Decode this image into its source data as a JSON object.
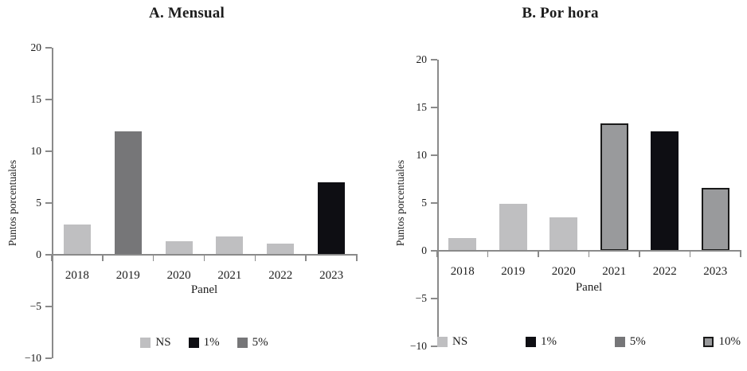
{
  "figure": {
    "background": "#ffffff",
    "text_color": "#1c1c1c",
    "axis_color": "#8a8a8a"
  },
  "styles": {
    "NS": {
      "fill": "#bfbfc1",
      "stroke": null
    },
    "1%": {
      "fill": "#0e0e13",
      "stroke": null
    },
    "5%": {
      "fill": "#767678",
      "stroke": null
    },
    "10%": {
      "fill": "#999a9c",
      "stroke": "#1a1a1a"
    }
  },
  "chart_data": [
    {
      "type": "bar",
      "title": "A. Mensual",
      "xlabel": "Panel",
      "ylabel": "Puntos porcentuales",
      "ylim": [
        -10,
        20
      ],
      "yticks": [
        20,
        15,
        10,
        5,
        0,
        -5,
        -10
      ],
      "grid": false,
      "legend_position": "bottom",
      "categories": [
        "2018",
        "2019",
        "2020",
        "2021",
        "2022",
        "2023"
      ],
      "values": [
        2.9,
        11.9,
        1.3,
        1.8,
        1.1,
        7.0
      ],
      "significance": [
        "NS",
        "5%",
        "NS",
        "NS",
        "NS",
        "1%"
      ],
      "legend": [
        "NS",
        "1%",
        "5%"
      ]
    },
    {
      "type": "bar",
      "title": "B. Por hora",
      "xlabel": "Panel",
      "ylabel": "Puntos porcentuales",
      "ylim": [
        -10,
        20
      ],
      "yticks": [
        20,
        15,
        10,
        5,
        0,
        -5,
        -10
      ],
      "grid": false,
      "legend_position": "bottom",
      "categories": [
        "2018",
        "2019",
        "2020",
        "2021",
        "2022",
        "2023"
      ],
      "values": [
        1.3,
        4.9,
        3.5,
        13.3,
        12.5,
        6.6
      ],
      "significance": [
        "NS",
        "NS",
        "NS",
        "10%",
        "1%",
        "10%"
      ],
      "legend": [
        "NS",
        "1%",
        "5%",
        "10%"
      ]
    }
  ]
}
